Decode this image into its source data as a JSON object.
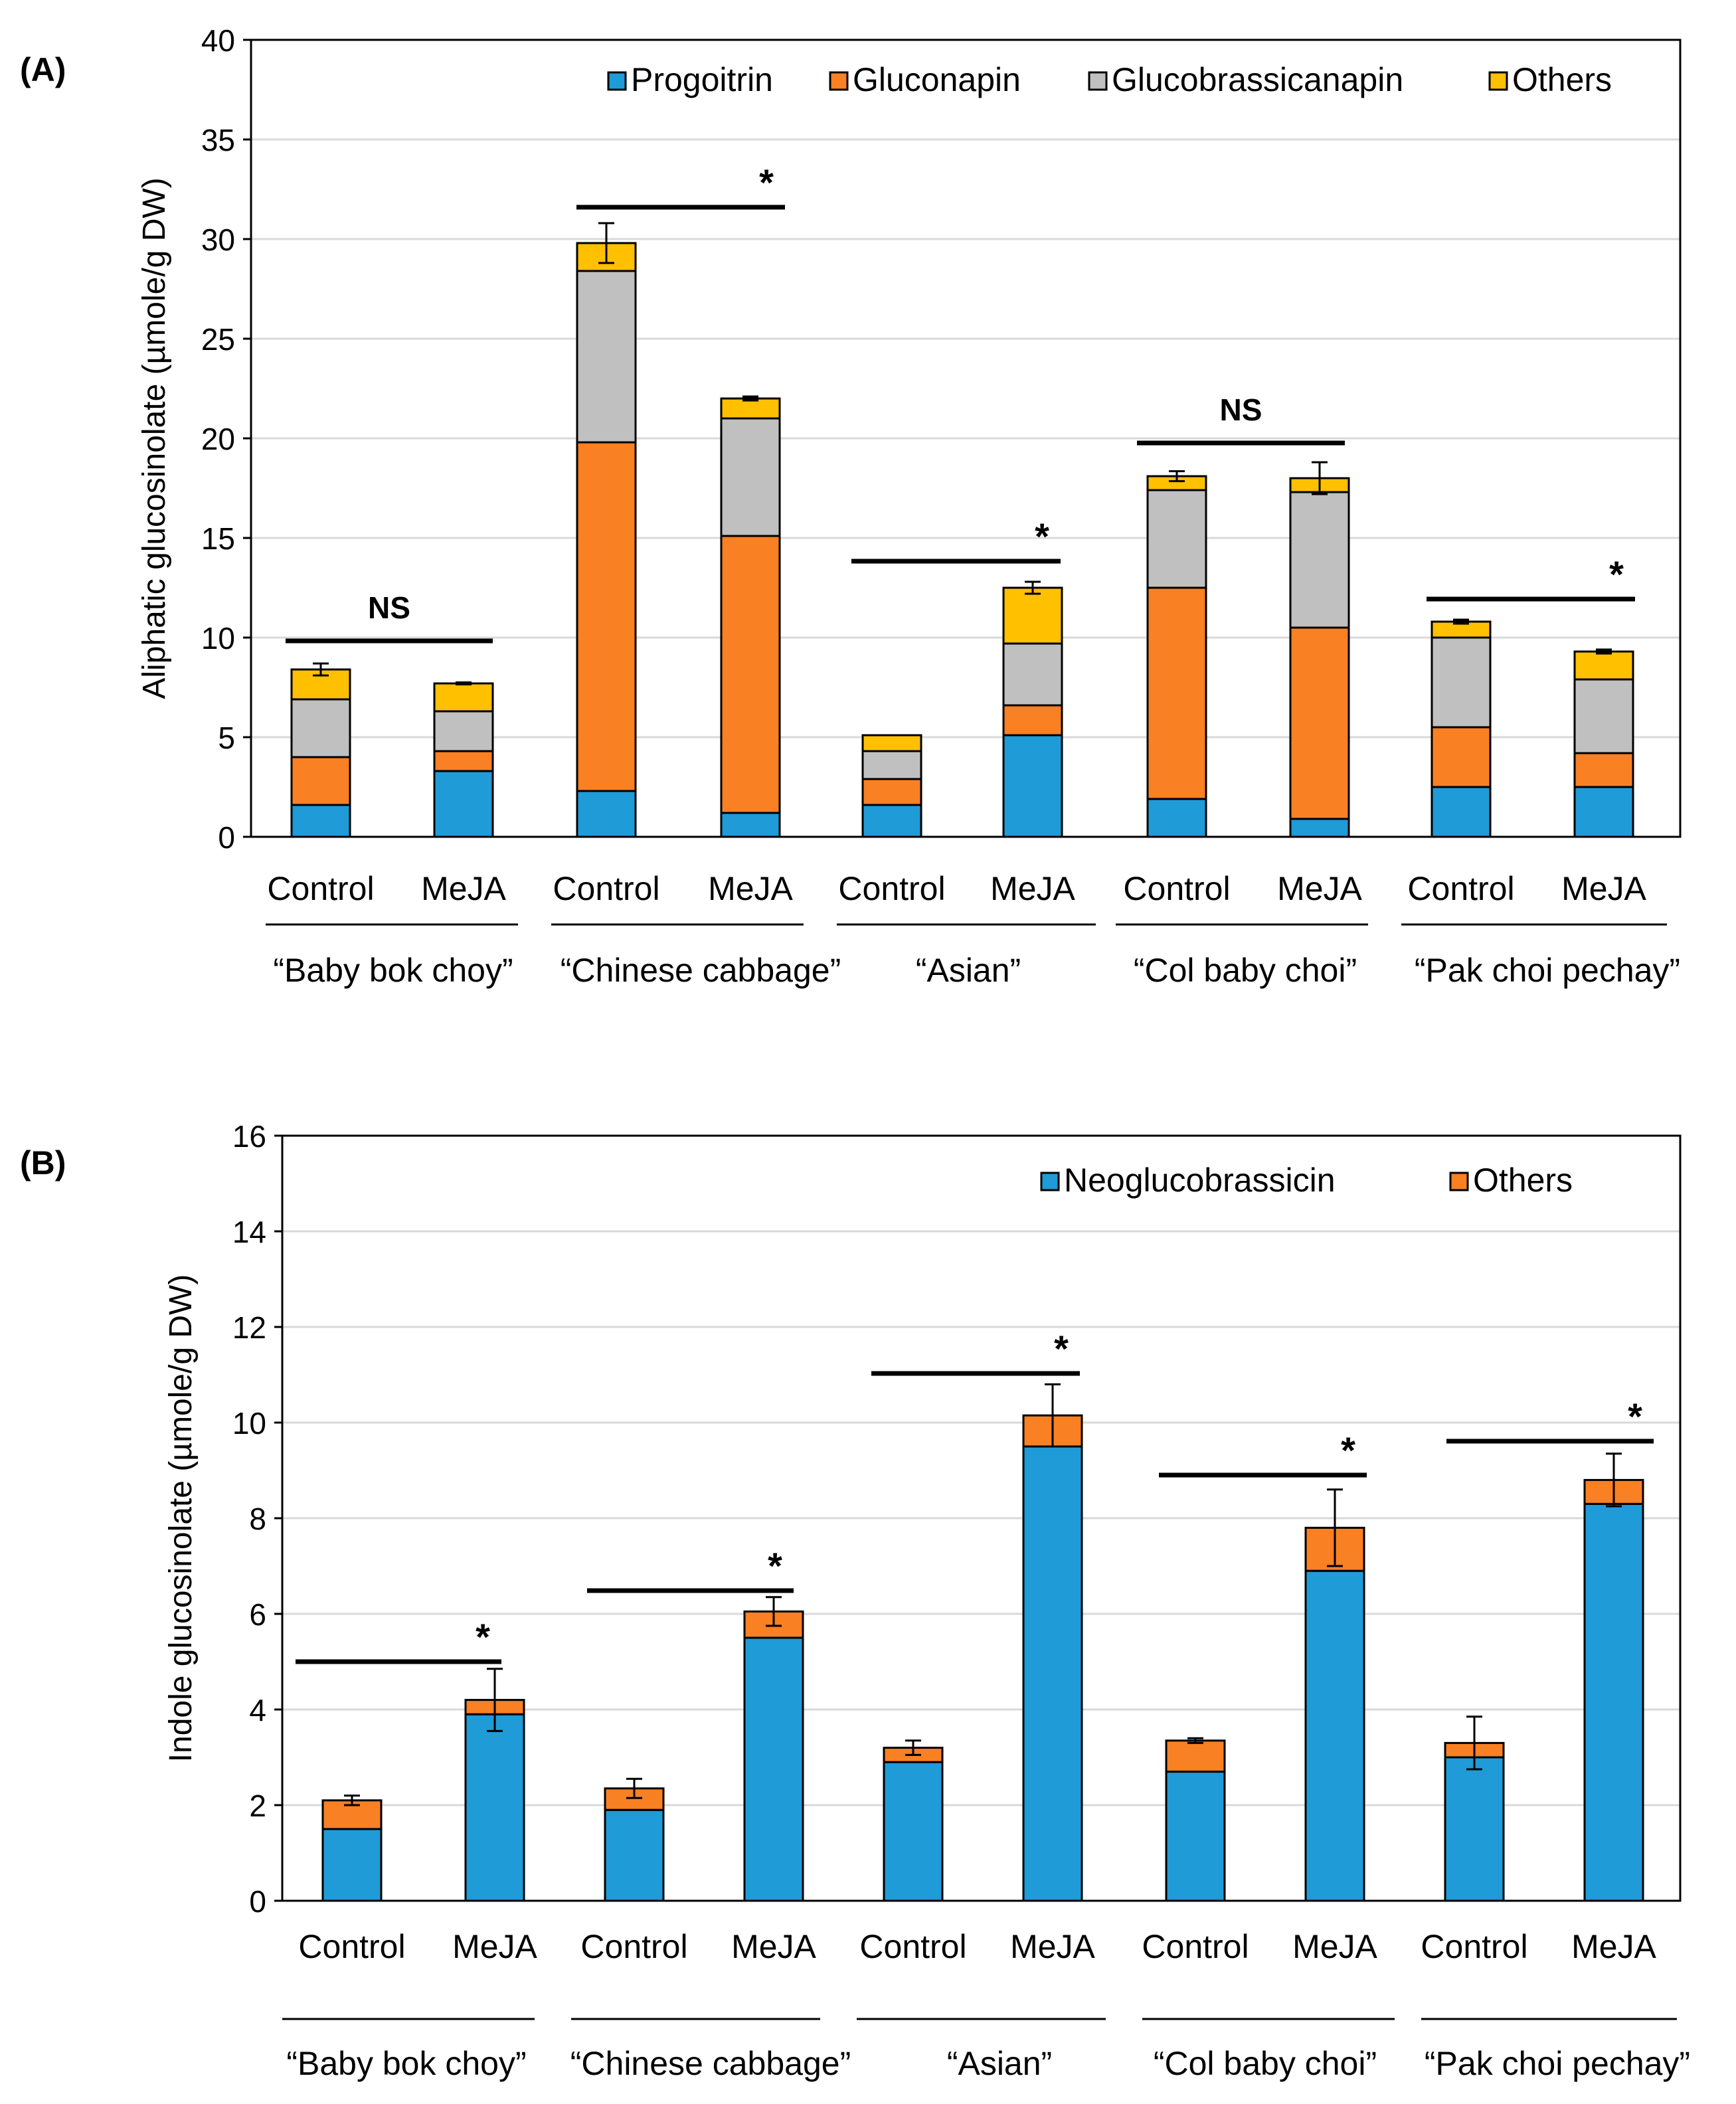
{
  "chart_data": [
    {
      "panel_label": "(A)",
      "type": "bar",
      "stacked": true,
      "ylabel": "Aliphatic glucosinolate (µmole/g DW)",
      "ylim": [
        0,
        40
      ],
      "yticks": [
        "0",
        "5",
        "10",
        "15",
        "20",
        "25",
        "30",
        "35",
        "40"
      ],
      "grid": true,
      "legend_position": "top-right",
      "categories": [
        "Control",
        "MeJA",
        "Control",
        "MeJA",
        "Control",
        "MeJA",
        "Control",
        "MeJA",
        "Control",
        "MeJA"
      ],
      "groups": [
        "“Baby bok choy”",
        "“Chinese cabbage”",
        "“Asian”",
        "“Col baby choi”",
        "“Pak choi pechay”"
      ],
      "series": [
        {
          "name": "Progoitrin",
          "color": "#1f9bd7",
          "values": [
            1.6,
            3.3,
            2.3,
            1.2,
            1.6,
            5.1,
            1.9,
            0.9,
            2.5,
            2.5
          ]
        },
        {
          "name": "Gluconapin",
          "color": "#f98023",
          "values": [
            2.4,
            1.0,
            17.5,
            13.9,
            1.3,
            1.5,
            10.6,
            9.6,
            3.0,
            1.7
          ]
        },
        {
          "name": "Glucobrassicanapin",
          "color": "#c0c0c0",
          "values": [
            2.9,
            2.0,
            8.6,
            5.9,
            1.4,
            3.1,
            4.9,
            6.8,
            4.5,
            3.7
          ]
        },
        {
          "name": "Others",
          "color": "#ffc000",
          "values": [
            1.5,
            1.4,
            1.4,
            1.0,
            0.8,
            2.8,
            0.7,
            0.7,
            0.8,
            1.4
          ]
        }
      ],
      "error": [
        0.3,
        0.05,
        1.0,
        0.1,
        0.0,
        0.3,
        0.25,
        0.8,
        0.1,
        0.1
      ],
      "significance": [
        "NS",
        "*",
        "*",
        "NS",
        "*"
      ]
    },
    {
      "panel_label": "(B)",
      "type": "bar",
      "stacked": true,
      "ylabel": "Indole glucosinolate (µmole/g DW)",
      "ylim": [
        0,
        16
      ],
      "yticks": [
        "0",
        "2",
        "4",
        "6",
        "8",
        "10",
        "12",
        "14",
        "16"
      ],
      "grid": true,
      "legend_position": "top-right",
      "categories": [
        "Control",
        "MeJA",
        "Control",
        "MeJA",
        "Control",
        "MeJA",
        "Control",
        "MeJA",
        "Control",
        "MeJA"
      ],
      "groups": [
        "“Baby bok choy”",
        "“Chinese cabbage”",
        "“Asian”",
        "“Col baby choi”",
        "“Pak choi pechay”"
      ],
      "series": [
        {
          "name": "Neoglucobrassicin",
          "color": "#1f9bd7",
          "values": [
            1.5,
            3.9,
            1.9,
            5.5,
            2.9,
            9.5,
            2.7,
            6.9,
            3.0,
            8.3
          ]
        },
        {
          "name": "Others",
          "color": "#f98023",
          "values": [
            0.6,
            0.3,
            0.45,
            0.55,
            0.3,
            0.65,
            0.65,
            0.9,
            0.3,
            0.5
          ]
        }
      ],
      "error": [
        0.1,
        0.65,
        0.2,
        0.3,
        0.15,
        0.65,
        0.05,
        0.8,
        0.55,
        0.55
      ],
      "significance": [
        "*",
        "*",
        "*",
        "*",
        "*"
      ]
    }
  ]
}
